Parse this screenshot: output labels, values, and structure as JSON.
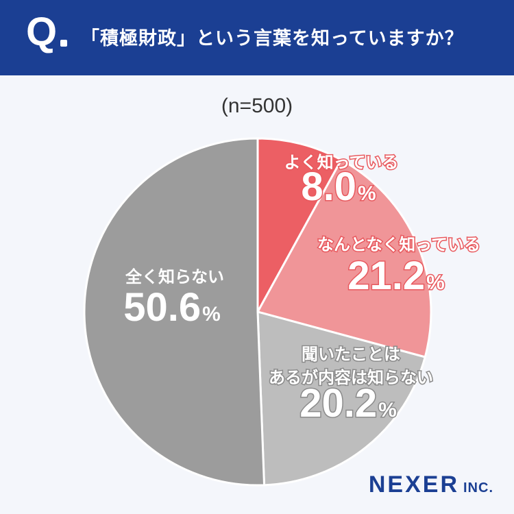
{
  "header": {
    "q_mark": "Q",
    "question": "「積極財政」という言葉を知っていますか？"
  },
  "sample": "(n=500)",
  "logo": {
    "main": "NEXER",
    "sub": "INC."
  },
  "chart_data": {
    "type": "pie",
    "title": "「積極財政」という言葉を知っていますか？",
    "n": 500,
    "unit": "%",
    "slices": [
      {
        "label": "よく知っている",
        "value": 8.0,
        "color": "#ec5f64",
        "text_color": "#ffffff",
        "stroke": "#e8585d"
      },
      {
        "label": "なんとなく知っている",
        "value": 21.2,
        "color": "#f09598",
        "text_color": "#ffffff",
        "stroke": "#e8585d"
      },
      {
        "label": "聞いたことはあるが内容は知らない",
        "label_lines": [
          "聞いたことは",
          "あるが内容は知らない"
        ],
        "value": 20.2,
        "color": "#bdbdbd",
        "text_color": "#ffffff",
        "stroke": "#8a8a8a"
      },
      {
        "label": "全く知らない",
        "value": 50.6,
        "color": "#9c9c9c",
        "text_color": "#ffffff",
        "stroke": ""
      }
    ]
  }
}
